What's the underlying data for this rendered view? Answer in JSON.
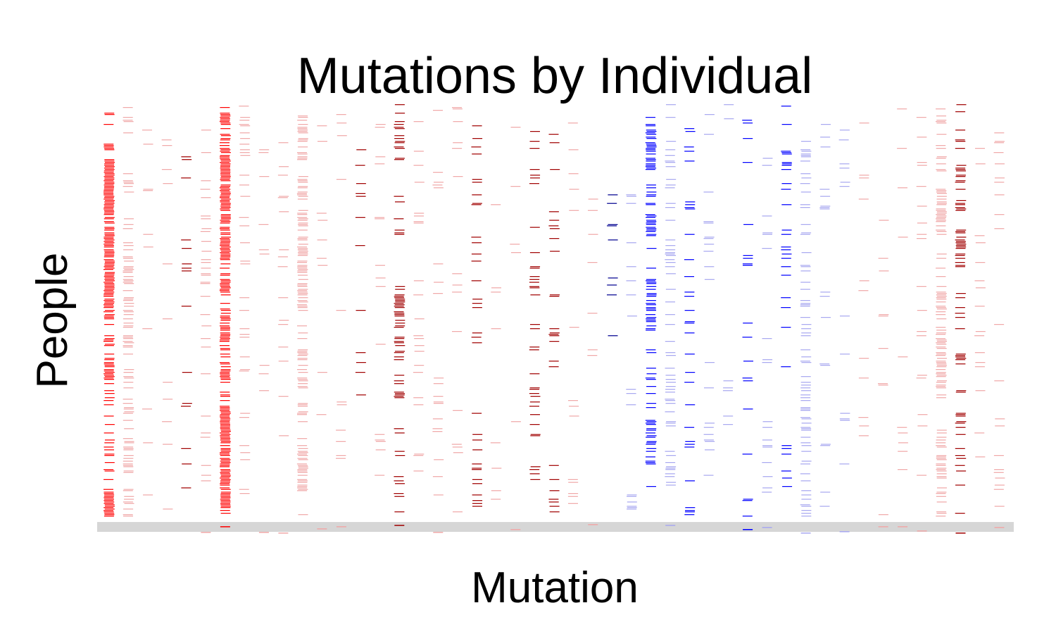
{
  "chart_data": {
    "type": "heatmap",
    "title": "Mutations by Individual",
    "xlabel": "Mutation",
    "ylabel": "People",
    "grid": false,
    "legend": "none",
    "colors": {
      "strong_red": "#ff0000",
      "dark_red": "#a00000",
      "light_red": "#f0a8a8",
      "strong_blue": "#0000ff",
      "dark_blue": "#000090",
      "light_blue": "#a8a8f0",
      "band": "#d6d6d6"
    },
    "columns": [
      {
        "color": "strong_red",
        "density": 0.55
      },
      {
        "color": "light_red",
        "density": 0.3
      },
      {
        "color": "light_red",
        "density": 0.06
      },
      {
        "color": "light_red",
        "density": 0.05
      },
      {
        "color": "dark_red",
        "density": 0.06
      },
      {
        "color": "light_red",
        "density": 0.12
      },
      {
        "color": "strong_red",
        "density": 0.85
      },
      {
        "color": "light_red",
        "density": 0.1
      },
      {
        "color": "light_red",
        "density": 0.04
      },
      {
        "color": "light_red",
        "density": 0.04
      },
      {
        "color": "light_red",
        "density": 0.35
      },
      {
        "color": "light_red",
        "density": 0.04
      },
      {
        "color": "light_red",
        "density": 0.03
      },
      {
        "color": "dark_red",
        "density": 0.03
      },
      {
        "color": "light_red",
        "density": 0.03
      },
      {
        "color": "dark_red",
        "density": 0.25
      },
      {
        "color": "light_red",
        "density": 0.08
      },
      {
        "color": "light_red",
        "density": 0.06
      },
      {
        "color": "light_red",
        "density": 0.04
      },
      {
        "color": "dark_red",
        "density": 0.07
      },
      {
        "color": "light_red",
        "density": 0.03
      },
      {
        "color": "light_red",
        "density": 0.03
      },
      {
        "color": "dark_red",
        "density": 0.1
      },
      {
        "color": "dark_red",
        "density": 0.12
      },
      {
        "color": "light_red",
        "density": 0.08
      },
      {
        "color": "light_red",
        "density": 0.04
      },
      {
        "color": "dark_blue",
        "density": 0.03
      },
      {
        "color": "light_blue",
        "density": 0.05
      },
      {
        "color": "strong_blue",
        "density": 0.4
      },
      {
        "color": "light_blue",
        "density": 0.15
      },
      {
        "color": "strong_blue",
        "density": 0.08
      },
      {
        "color": "light_blue",
        "density": 0.05
      },
      {
        "color": "light_blue",
        "density": 0.06
      },
      {
        "color": "strong_blue",
        "density": 0.05
      },
      {
        "color": "light_blue",
        "density": 0.05
      },
      {
        "color": "strong_blue",
        "density": 0.08
      },
      {
        "color": "light_blue",
        "density": 0.2
      },
      {
        "color": "light_blue",
        "density": 0.05
      },
      {
        "color": "light_blue",
        "density": 0.06
      },
      {
        "color": "light_red",
        "density": 0.05
      },
      {
        "color": "light_red",
        "density": 0.05
      },
      {
        "color": "light_red",
        "density": 0.05
      },
      {
        "color": "light_red",
        "density": 0.06
      },
      {
        "color": "light_red",
        "density": 0.35
      },
      {
        "color": "dark_red",
        "density": 0.25
      },
      {
        "color": "light_red",
        "density": 0.06
      },
      {
        "color": "light_red",
        "density": 0.06
      }
    ]
  }
}
